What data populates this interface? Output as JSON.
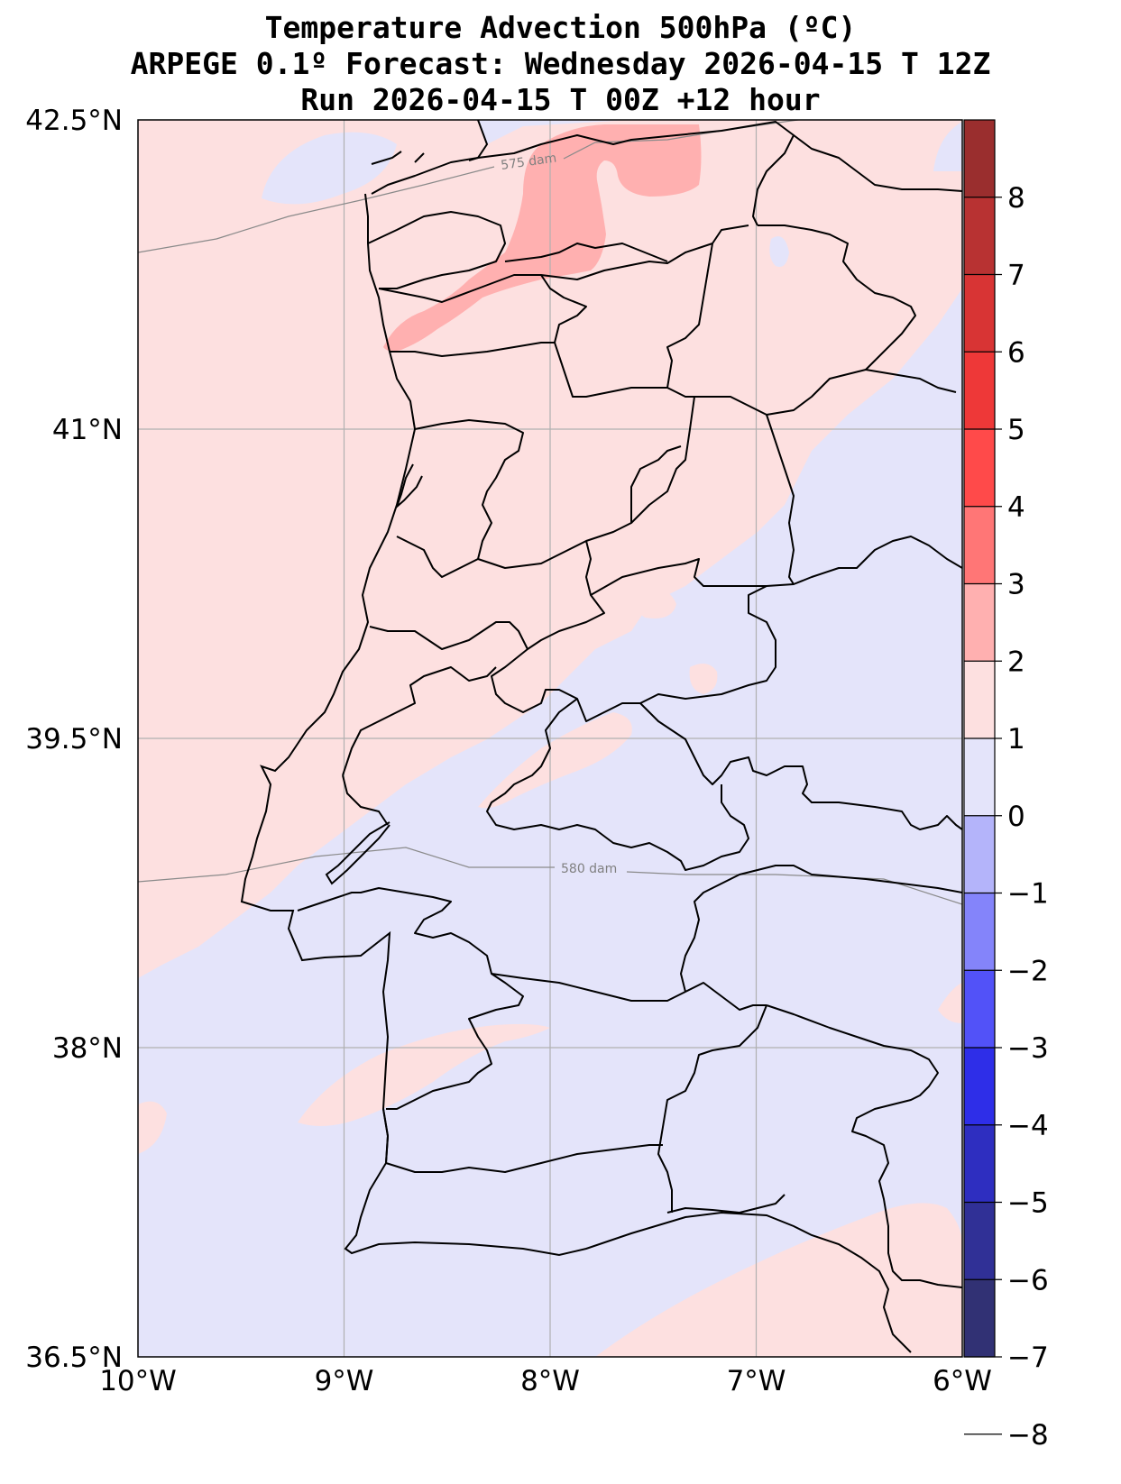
{
  "title": {
    "line1": "Temperature Advection  500hPa (ºC)",
    "line2": "ARPEGE 0.1º Forecast: Wednesday 2026-04-15 T 12Z",
    "line3": "Run 2026-04-15 T 00Z +12 hour"
  },
  "map": {
    "lon_range": [
      -10,
      -6
    ],
    "lat_range": [
      36.5,
      42.5
    ],
    "lon_ticks": [
      {
        "value": -10,
        "label": "10°W"
      },
      {
        "value": -9,
        "label": "9°W"
      },
      {
        "value": -8,
        "label": "8°W"
      },
      {
        "value": -7,
        "label": "7°W"
      },
      {
        "value": -6,
        "label": "6°W"
      }
    ],
    "lat_ticks": [
      {
        "value": 42.5,
        "label": "42.5°N"
      },
      {
        "value": 41,
        "label": "41°N"
      },
      {
        "value": 39.5,
        "label": "39.5°N"
      },
      {
        "value": 38,
        "label": "38°N"
      },
      {
        "value": 36.5,
        "label": "36.5°N"
      }
    ],
    "contours": [
      {
        "label": "575 dam"
      },
      {
        "label": "580 dam"
      }
    ],
    "colors": {
      "positive_weak": "#fde0e0",
      "positive_1_2": "#ffb0b0",
      "negative_weak": "#e4e4fa",
      "coast": "#000000",
      "grid": "#b0b0b0",
      "height_contour": "#8a8a8a"
    }
  },
  "colorbar": {
    "labels": [
      "8",
      "7",
      "6",
      "5",
      "4",
      "3",
      "2",
      "1",
      "0",
      "−1",
      "−2",
      "−3",
      "−4",
      "−5",
      "−6",
      "−7",
      "−8"
    ],
    "colors_top_to_bottom": [
      "#9a2e2e",
      "#b83232",
      "#d83434",
      "#ee3838",
      "#ff4a4a",
      "#ff7676",
      "#ffb0b0",
      "#fde0e0",
      "#e4e4fa",
      "#b4b4fa",
      "#8484fa",
      "#5252f8",
      "#2e2ee8",
      "#2e2ec0",
      "#303096",
      "#313174"
    ]
  }
}
